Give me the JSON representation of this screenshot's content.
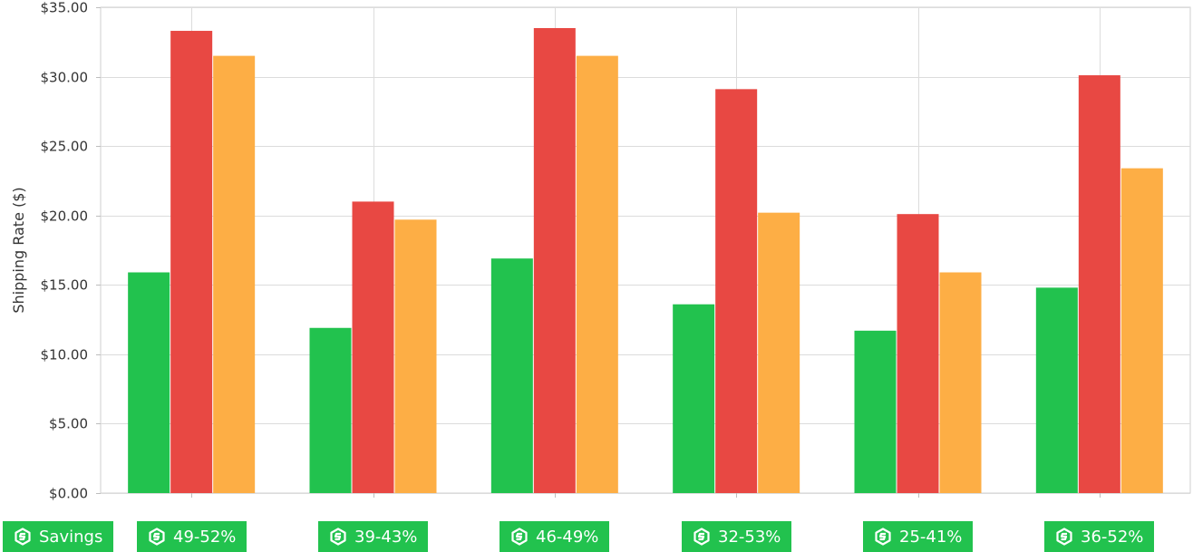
{
  "chart_data": {
    "type": "bar",
    "categories": [
      "49-52%",
      "39-43%",
      "46-49%",
      "32-53%",
      "25-41%",
      "36-52%"
    ],
    "series": [
      {
        "values": [
          15.9,
          11.9,
          16.9,
          13.6,
          11.7,
          14.8
        ],
        "color": "#22c24e"
      },
      {
        "values": [
          33.3,
          21.0,
          33.5,
          29.1,
          20.1,
          30.1
        ],
        "color": "#e84843"
      },
      {
        "values": [
          31.5,
          19.7,
          31.5,
          20.2,
          15.9,
          23.4
        ],
        "color": "#fdae45"
      }
    ],
    "ylabel": "Shipping Rate ($)",
    "ylim": [
      0,
      35
    ],
    "yticks": [
      "$0.00",
      "$5.00",
      "$10.00",
      "$15.00",
      "$20.00",
      "$25.00",
      "$30.00",
      "$35.00"
    ],
    "grid": true
  },
  "badges": {
    "first_label": "Savings",
    "icon": "brand-s-icon",
    "color": "#22c24e"
  }
}
